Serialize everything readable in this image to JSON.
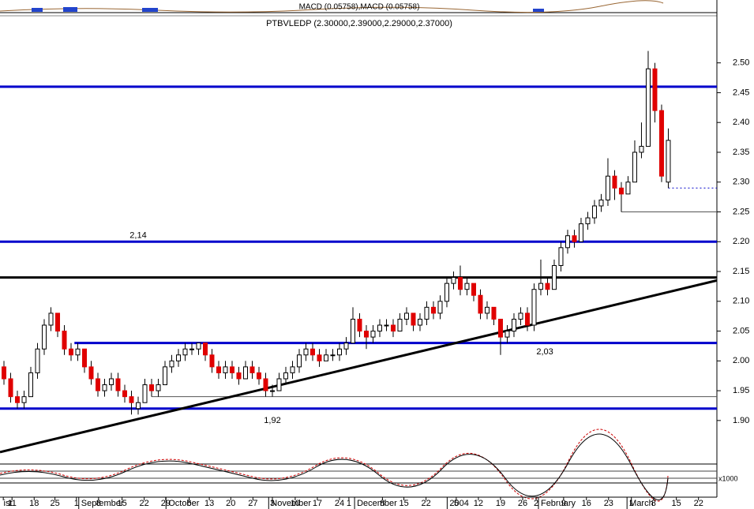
{
  "chart_data": {
    "type": "candlestick",
    "title": "PTBVLEDP (2.30000,2.39000,2.29000,2.37000)",
    "indicator_label": "MACD (0.05758),MACD (0.05758)",
    "volume_scale_label": "x1000",
    "up_color": "#ffffff",
    "down_color": "#e00000",
    "ylim": [
      1.827,
      2.579
    ],
    "yticks": [
      {
        "value": 1.9,
        "label": "1.90"
      },
      {
        "value": 1.95,
        "label": "1.95"
      },
      {
        "value": 2.0,
        "label": "2.00"
      },
      {
        "value": 2.05,
        "label": "2.05"
      },
      {
        "value": 2.1,
        "label": "2.10"
      },
      {
        "value": 2.15,
        "label": "2.15"
      },
      {
        "value": 2.2,
        "label": "2.20"
      },
      {
        "value": 2.25,
        "label": "2.25"
      },
      {
        "value": 2.3,
        "label": "2.30"
      },
      {
        "value": 2.35,
        "label": "2.35"
      },
      {
        "value": 2.4,
        "label": "2.40"
      },
      {
        "value": 2.45,
        "label": "2.45"
      },
      {
        "value": 2.5,
        "label": "2.50"
      }
    ],
    "xlim": [
      -0.59,
      106.24
    ],
    "xticks": [
      {
        "value": -0.1,
        "label": "ist"
      },
      {
        "value": 1.2,
        "label": "11"
      },
      {
        "value": 4.5,
        "label": "18"
      },
      {
        "value": 7.6,
        "label": "25"
      },
      {
        "value": 10.8,
        "label": "1"
      },
      {
        "value": 14.1,
        "label": "8"
      },
      {
        "value": 17.6,
        "label": "15"
      },
      {
        "value": 20.9,
        "label": "22"
      },
      {
        "value": 24.1,
        "label": "29"
      },
      {
        "value": 27.6,
        "label": "6"
      },
      {
        "value": 30.6,
        "label": "13"
      },
      {
        "value": 33.8,
        "label": "20"
      },
      {
        "value": 37.1,
        "label": "27"
      },
      {
        "value": 40,
        "label": "3"
      },
      {
        "value": 43.4,
        "label": "10"
      },
      {
        "value": 46.7,
        "label": "17"
      },
      {
        "value": 50,
        "label": "24"
      },
      {
        "value": 51.4,
        "label": "1"
      },
      {
        "value": 56.4,
        "label": "8"
      },
      {
        "value": 59.6,
        "label": "15"
      },
      {
        "value": 62.9,
        "label": "22"
      },
      {
        "value": 67.4,
        "label": "5"
      },
      {
        "value": 70.7,
        "label": "12"
      },
      {
        "value": 74,
        "label": "19"
      },
      {
        "value": 77.3,
        "label": "26"
      },
      {
        "value": 79.3,
        "label": "2"
      },
      {
        "value": 83.4,
        "label": "9"
      },
      {
        "value": 86.8,
        "label": "16"
      },
      {
        "value": 90.1,
        "label": "23"
      },
      {
        "value": 93.5,
        "label": "1"
      },
      {
        "value": 96.8,
        "label": "8"
      },
      {
        "value": 100.2,
        "label": "15"
      },
      {
        "value": 103.5,
        "label": "22"
      }
    ],
    "months": [
      {
        "value": 11.5,
        "label": "September"
      },
      {
        "value": 24.5,
        "label": "October"
      },
      {
        "value": 39.8,
        "label": "November"
      },
      {
        "value": 52.6,
        "label": "December"
      },
      {
        "value": 66.4,
        "label": "2004"
      },
      {
        "value": 80,
        "label": "February"
      },
      {
        "value": 93.2,
        "label": "March"
      }
    ],
    "candles": [
      [
        1.99,
        2.0,
        1.96,
        1.97
      ],
      [
        1.97,
        1.98,
        1.93,
        1.94
      ],
      [
        1.94,
        1.95,
        1.92,
        1.93
      ],
      [
        1.93,
        1.95,
        1.92,
        1.94
      ],
      [
        1.94,
        1.99,
        1.94,
        1.98
      ],
      [
        1.98,
        2.03,
        1.97,
        2.02
      ],
      [
        2.02,
        2.07,
        2.01,
        2.06
      ],
      [
        2.06,
        2.09,
        2.05,
        2.08
      ],
      [
        2.08,
        2.08,
        2.04,
        2.05
      ],
      [
        2.05,
        2.06,
        2.01,
        2.02
      ],
      [
        2.02,
        2.03,
        2.0,
        2.01
      ],
      [
        2.01,
        2.03,
        2.0,
        2.02
      ],
      [
        2.02,
        2.02,
        1.98,
        1.99
      ],
      [
        1.99,
        2.0,
        1.96,
        1.97
      ],
      [
        1.97,
        1.98,
        1.94,
        1.95
      ],
      [
        1.95,
        1.97,
        1.94,
        1.96
      ],
      [
        1.96,
        1.98,
        1.95,
        1.97
      ],
      [
        1.97,
        1.98,
        1.94,
        1.95
      ],
      [
        1.95,
        1.96,
        1.93,
        1.94
      ],
      [
        1.94,
        1.95,
        1.91,
        1.93
      ],
      [
        1.92,
        1.94,
        1.91,
        1.93
      ],
      [
        1.93,
        1.97,
        1.93,
        1.96
      ],
      [
        1.96,
        1.97,
        1.94,
        1.95
      ],
      [
        1.95,
        1.97,
        1.94,
        1.96
      ],
      [
        1.96,
        2.0,
        1.96,
        1.99
      ],
      [
        1.99,
        2.01,
        1.98,
        2.0
      ],
      [
        2.0,
        2.02,
        1.99,
        2.01
      ],
      [
        2.01,
        2.03,
        2.0,
        2.02
      ],
      [
        2.02,
        2.03,
        2.01,
        2.02
      ],
      [
        2.02,
        2.03,
        2.01,
        2.03
      ],
      [
        2.03,
        2.03,
        2.0,
        2.01
      ],
      [
        2.01,
        2.02,
        1.98,
        1.99
      ],
      [
        1.99,
        2.0,
        1.97,
        1.98
      ],
      [
        1.98,
        2.0,
        1.97,
        1.99
      ],
      [
        1.99,
        2.0,
        1.97,
        1.98
      ],
      [
        1.98,
        1.99,
        1.96,
        1.97
      ],
      [
        1.97,
        2.0,
        1.97,
        1.99
      ],
      [
        1.99,
        2.0,
        1.97,
        1.98
      ],
      [
        1.98,
        1.99,
        1.96,
        1.97
      ],
      [
        1.97,
        1.98,
        1.94,
        1.95
      ],
      [
        1.95,
        1.96,
        1.94,
        1.95
      ],
      [
        1.95,
        1.98,
        1.95,
        1.97
      ],
      [
        1.97,
        1.99,
        1.96,
        1.98
      ],
      [
        1.98,
        2.0,
        1.97,
        1.99
      ],
      [
        1.99,
        2.02,
        1.98,
        2.01
      ],
      [
        2.01,
        2.03,
        2.0,
        2.02
      ],
      [
        2.02,
        2.03,
        2.0,
        2.01
      ],
      [
        2.01,
        2.02,
        1.99,
        2.0
      ],
      [
        2.0,
        2.02,
        2.0,
        2.01
      ],
      [
        2.01,
        2.02,
        2.0,
        2.01
      ],
      [
        2.01,
        2.03,
        2.0,
        2.02
      ],
      [
        2.02,
        2.04,
        2.01,
        2.03
      ],
      [
        2.03,
        2.09,
        2.03,
        2.07
      ],
      [
        2.07,
        2.08,
        2.04,
        2.05
      ],
      [
        2.05,
        2.06,
        2.02,
        2.04
      ],
      [
        2.04,
        2.06,
        2.03,
        2.05
      ],
      [
        2.05,
        2.07,
        2.04,
        2.06
      ],
      [
        2.06,
        2.07,
        2.05,
        2.06
      ],
      [
        2.06,
        2.07,
        2.04,
        2.05
      ],
      [
        2.05,
        2.08,
        2.05,
        2.07
      ],
      [
        2.07,
        2.09,
        2.06,
        2.08
      ],
      [
        2.08,
        2.08,
        2.05,
        2.06
      ],
      [
        2.06,
        2.08,
        2.05,
        2.07
      ],
      [
        2.07,
        2.1,
        2.06,
        2.09
      ],
      [
        2.09,
        2.1,
        2.07,
        2.08
      ],
      [
        2.08,
        2.11,
        2.07,
        2.1
      ],
      [
        2.1,
        2.14,
        2.09,
        2.13
      ],
      [
        2.13,
        2.15,
        2.12,
        2.14
      ],
      [
        2.14,
        2.16,
        2.11,
        2.12
      ],
      [
        2.12,
        2.14,
        2.11,
        2.13
      ],
      [
        2.13,
        2.13,
        2.1,
        2.11
      ],
      [
        2.11,
        2.12,
        2.07,
        2.08
      ],
      [
        2.08,
        2.1,
        2.07,
        2.09
      ],
      [
        2.09,
        2.09,
        2.06,
        2.07
      ],
      [
        2.07,
        2.07,
        2.01,
        2.04
      ],
      [
        2.04,
        2.06,
        2.03,
        2.05
      ],
      [
        2.05,
        2.08,
        2.04,
        2.07
      ],
      [
        2.07,
        2.09,
        2.06,
        2.08
      ],
      [
        2.08,
        2.09,
        2.05,
        2.06
      ],
      [
        2.06,
        2.13,
        2.05,
        2.12
      ],
      [
        2.12,
        2.17,
        2.11,
        2.13
      ],
      [
        2.13,
        2.14,
        2.11,
        2.12
      ],
      [
        2.12,
        2.17,
        2.12,
        2.16
      ],
      [
        2.16,
        2.2,
        2.15,
        2.19
      ],
      [
        2.19,
        2.22,
        2.18,
        2.21
      ],
      [
        2.21,
        2.22,
        2.19,
        2.2
      ],
      [
        2.2,
        2.24,
        2.2,
        2.23
      ],
      [
        2.23,
        2.25,
        2.22,
        2.24
      ],
      [
        2.24,
        2.27,
        2.23,
        2.26
      ],
      [
        2.26,
        2.28,
        2.25,
        2.27
      ],
      [
        2.27,
        2.34,
        2.26,
        2.31
      ],
      [
        2.31,
        2.32,
        2.27,
        2.29
      ],
      [
        2.29,
        2.3,
        2.25,
        2.28
      ],
      [
        2.28,
        2.31,
        2.28,
        2.3
      ],
      [
        2.3,
        2.37,
        2.3,
        2.35
      ],
      [
        2.35,
        2.4,
        2.34,
        2.36
      ],
      [
        2.36,
        2.52,
        2.36,
        2.49
      ],
      [
        2.49,
        2.5,
        2.4,
        2.42
      ],
      [
        2.42,
        2.43,
        2.3,
        2.31
      ],
      [
        2.3,
        2.39,
        2.29,
        2.37
      ]
    ],
    "hlines": [
      {
        "value": 2.46,
        "color": "#0000cc",
        "style": "thick"
      },
      {
        "value": 2.2,
        "color": "#0000cc",
        "style": "thick"
      },
      {
        "value": 2.14,
        "color": "#000000",
        "style": "thick"
      },
      {
        "value": 2.03,
        "color": "#0000cc",
        "style": "thick",
        "start": 10.5
      },
      {
        "value": 1.92,
        "color": "#0000cc",
        "style": "thick"
      },
      {
        "value": 1.94,
        "color": "#555555",
        "style": "thin",
        "start": 22
      },
      {
        "value": 2.25,
        "color": "#555555",
        "style": "thin",
        "start": 92
      },
      {
        "value": 2.29,
        "color": "#0000cc",
        "style": "dotted",
        "start": 99
      }
    ],
    "trendline": {
      "x": [
        -0.59,
        106.24
      ],
      "y": [
        1.847,
        2.135
      ],
      "color": "#000000"
    },
    "annotations": [
      {
        "text": "2,14",
        "x": 20,
        "y": 2.21
      },
      {
        "text": "1,92",
        "x": 40,
        "y": 1.9
      },
      {
        "text": "2,03",
        "x": 80.6,
        "y": 2.015
      }
    ]
  }
}
